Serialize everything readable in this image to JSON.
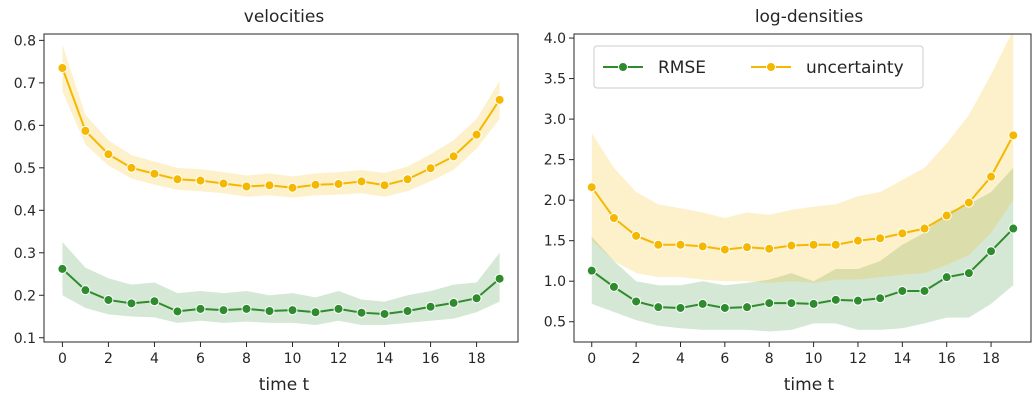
{
  "colors": {
    "rmse": "#2e8b2e",
    "uncertainty": "#f5b800",
    "rmse_band": "#2e8b2e",
    "uncertainty_band": "#f5b800",
    "axis": "#262626"
  },
  "legend": {
    "rmse_label": "RMSE",
    "uncertainty_label": "uncertainty"
  },
  "chart_data": [
    {
      "type": "line",
      "title": "velocities",
      "xlabel": "time t",
      "ylabel": "",
      "xlim": [
        -0.8,
        19.8
      ],
      "ylim": [
        0.09,
        0.815
      ],
      "xticks": [
        0,
        2,
        4,
        6,
        8,
        10,
        12,
        14,
        16,
        18
      ],
      "yticks": [
        0.1,
        0.2,
        0.3,
        0.4,
        0.5,
        0.6,
        0.7,
        0.8
      ],
      "ytick_labels": [
        "0.1",
        "0.2",
        "0.3",
        "0.4",
        "0.5",
        "0.6",
        "0.7",
        "0.8"
      ],
      "legend": false,
      "x": [
        0,
        1,
        2,
        3,
        4,
        5,
        6,
        7,
        8,
        9,
        10,
        11,
        12,
        13,
        14,
        15,
        16,
        17,
        18,
        19
      ],
      "series": [
        {
          "name": "RMSE",
          "color_key": "rmse",
          "values": [
            0.262,
            0.212,
            0.189,
            0.181,
            0.186,
            0.162,
            0.168,
            0.165,
            0.168,
            0.163,
            0.165,
            0.16,
            0.168,
            0.159,
            0.156,
            0.163,
            0.173,
            0.182,
            0.193,
            0.239
          ],
          "band_low": [
            0.2,
            0.17,
            0.155,
            0.15,
            0.148,
            0.135,
            0.14,
            0.135,
            0.138,
            0.135,
            0.135,
            0.13,
            0.14,
            0.13,
            0.13,
            0.135,
            0.14,
            0.145,
            0.16,
            0.185
          ],
          "band_high": [
            0.325,
            0.265,
            0.24,
            0.225,
            0.23,
            0.205,
            0.21,
            0.205,
            0.21,
            0.2,
            0.205,
            0.195,
            0.21,
            0.19,
            0.185,
            0.2,
            0.21,
            0.225,
            0.23,
            0.3
          ]
        },
        {
          "name": "uncertainty",
          "color_key": "uncertainty",
          "values": [
            0.735,
            0.587,
            0.532,
            0.5,
            0.486,
            0.473,
            0.47,
            0.463,
            0.456,
            0.459,
            0.453,
            0.46,
            0.462,
            0.468,
            0.459,
            0.473,
            0.499,
            0.527,
            0.578,
            0.66
          ],
          "band_low": [
            0.68,
            0.555,
            0.505,
            0.475,
            0.46,
            0.448,
            0.445,
            0.44,
            0.432,
            0.435,
            0.43,
            0.435,
            0.437,
            0.44,
            0.432,
            0.445,
            0.468,
            0.495,
            0.545,
            0.615
          ],
          "band_high": [
            0.79,
            0.625,
            0.565,
            0.53,
            0.515,
            0.5,
            0.497,
            0.49,
            0.482,
            0.487,
            0.48,
            0.487,
            0.49,
            0.495,
            0.488,
            0.503,
            0.532,
            0.565,
            0.615,
            0.705
          ]
        }
      ]
    },
    {
      "type": "line",
      "title": "log-densities",
      "xlabel": "time t",
      "ylabel": "",
      "xlim": [
        -0.8,
        19.8
      ],
      "ylim": [
        0.25,
        4.05
      ],
      "xticks": [
        0,
        2,
        4,
        6,
        8,
        10,
        12,
        14,
        16,
        18
      ],
      "yticks": [
        0.5,
        1.0,
        1.5,
        2.0,
        2.5,
        3.0,
        3.5,
        4.0
      ],
      "ytick_labels": [
        "0.5",
        "1.0",
        "1.5",
        "2.0",
        "2.5",
        "3.0",
        "3.5",
        "4.0"
      ],
      "legend": "top-left",
      "x": [
        0,
        1,
        2,
        3,
        4,
        5,
        6,
        7,
        8,
        9,
        10,
        11,
        12,
        13,
        14,
        15,
        16,
        17,
        18,
        19
      ],
      "series": [
        {
          "name": "RMSE",
          "color_key": "rmse",
          "values": [
            1.13,
            0.93,
            0.75,
            0.68,
            0.67,
            0.72,
            0.67,
            0.68,
            0.73,
            0.73,
            0.72,
            0.77,
            0.76,
            0.79,
            0.88,
            0.88,
            1.05,
            1.1,
            1.37,
            1.65
          ],
          "band_low": [
            0.72,
            0.62,
            0.52,
            0.45,
            0.42,
            0.4,
            0.4,
            0.4,
            0.38,
            0.4,
            0.48,
            0.48,
            0.4,
            0.4,
            0.42,
            0.48,
            0.55,
            0.55,
            0.72,
            0.95
          ],
          "band_high": [
            1.55,
            1.25,
            1.0,
            0.95,
            0.95,
            1.0,
            0.95,
            0.98,
            1.02,
            1.1,
            1.0,
            1.15,
            1.15,
            1.25,
            1.45,
            1.6,
            1.85,
            1.95,
            2.1,
            2.4
          ]
        },
        {
          "name": "uncertainty",
          "color_key": "uncertainty",
          "values": [
            2.16,
            1.78,
            1.56,
            1.45,
            1.45,
            1.43,
            1.39,
            1.42,
            1.4,
            1.44,
            1.45,
            1.45,
            1.5,
            1.53,
            1.59,
            1.65,
            1.81,
            1.97,
            2.29,
            2.8
          ],
          "band_low": [
            1.5,
            1.25,
            1.1,
            1.05,
            1.05,
            1.02,
            1.0,
            1.0,
            0.98,
            1.0,
            0.98,
            1.02,
            1.02,
            1.05,
            1.08,
            1.1,
            1.2,
            1.32,
            1.6,
            2.0
          ],
          "band_high": [
            2.83,
            2.4,
            2.1,
            1.95,
            1.9,
            1.85,
            1.78,
            1.85,
            1.82,
            1.88,
            1.92,
            1.95,
            2.05,
            2.1,
            2.25,
            2.4,
            2.7,
            3.05,
            3.55,
            4.1
          ]
        }
      ]
    }
  ]
}
